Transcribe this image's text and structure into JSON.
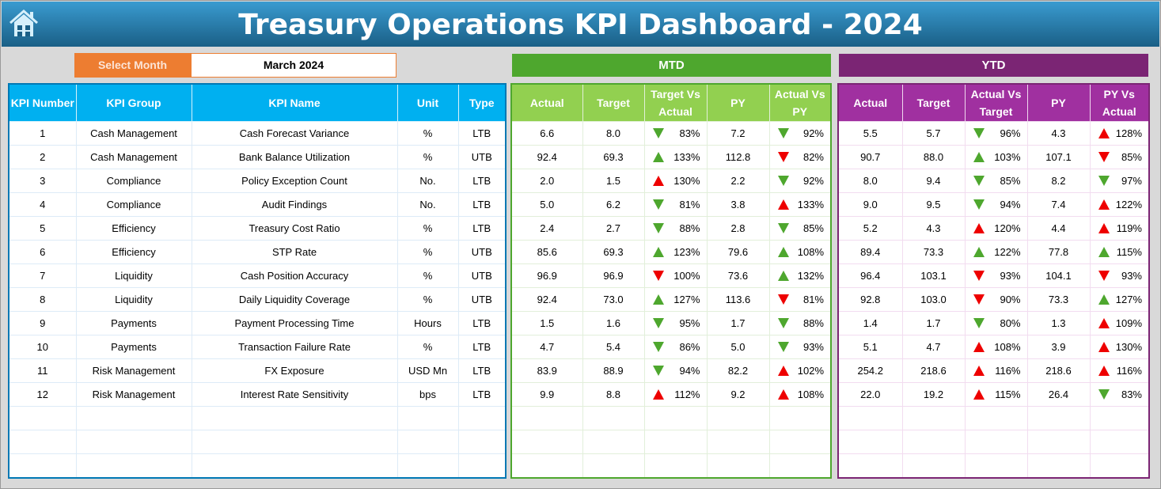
{
  "header": {
    "title": "Treasury Operations KPI Dashboard - 2024"
  },
  "filter": {
    "label": "Select Month",
    "value": "March 2024"
  },
  "sections": {
    "mtd": "MTD",
    "ytd": "YTD"
  },
  "colors": {
    "up_favorable": "#4ea72e",
    "unfavorable": "#e00000",
    "mtd": "#4ea72e",
    "ytd": "#7b2574",
    "info": "#00b0f0"
  },
  "info_headers": [
    "KPI Number",
    "KPI Group",
    "KPI Name",
    "Unit",
    "Type"
  ],
  "mtd_headers": [
    "Actual",
    "Target",
    "Target Vs Actual",
    "PY",
    "Actual Vs PY"
  ],
  "ytd_headers": [
    "Actual",
    "Target",
    "Actual Vs Target",
    "PY",
    "PY Vs Actual"
  ],
  "rows": [
    {
      "info": [
        "1",
        "Cash Management",
        "Cash Forecast Variance",
        "%",
        "LTB"
      ],
      "mtd": [
        "6.6",
        "8.0",
        [
          "down",
          "green",
          "83%"
        ],
        "7.2",
        [
          "down",
          "green",
          "92%"
        ]
      ],
      "ytd": [
        "5.5",
        "5.7",
        [
          "down",
          "green",
          "96%"
        ],
        "4.3",
        [
          "up",
          "red",
          "128%"
        ]
      ]
    },
    {
      "info": [
        "2",
        "Cash Management",
        "Bank Balance Utilization",
        "%",
        "UTB"
      ],
      "mtd": [
        "92.4",
        "69.3",
        [
          "up",
          "green",
          "133%"
        ],
        "112.8",
        [
          "down",
          "red",
          "82%"
        ]
      ],
      "ytd": [
        "90.7",
        "88.0",
        [
          "up",
          "green",
          "103%"
        ],
        "107.1",
        [
          "down",
          "red",
          "85%"
        ]
      ]
    },
    {
      "info": [
        "3",
        "Compliance",
        "Policy Exception Count",
        "No.",
        "LTB"
      ],
      "mtd": [
        "2.0",
        "1.5",
        [
          "up",
          "red",
          "130%"
        ],
        "2.2",
        [
          "down",
          "green",
          "92%"
        ]
      ],
      "ytd": [
        "8.0",
        "9.4",
        [
          "down",
          "green",
          "85%"
        ],
        "8.2",
        [
          "down",
          "green",
          "97%"
        ]
      ]
    },
    {
      "info": [
        "4",
        "Compliance",
        "Audit Findings",
        "No.",
        "LTB"
      ],
      "mtd": [
        "5.0",
        "6.2",
        [
          "down",
          "green",
          "81%"
        ],
        "3.8",
        [
          "up",
          "red",
          "133%"
        ]
      ],
      "ytd": [
        "9.0",
        "9.5",
        [
          "down",
          "green",
          "94%"
        ],
        "7.4",
        [
          "up",
          "red",
          "122%"
        ]
      ]
    },
    {
      "info": [
        "5",
        "Efficiency",
        "Treasury Cost Ratio",
        "%",
        "LTB"
      ],
      "mtd": [
        "2.4",
        "2.7",
        [
          "down",
          "green",
          "88%"
        ],
        "2.8",
        [
          "down",
          "green",
          "85%"
        ]
      ],
      "ytd": [
        "5.2",
        "4.3",
        [
          "up",
          "red",
          "120%"
        ],
        "4.4",
        [
          "up",
          "red",
          "119%"
        ]
      ]
    },
    {
      "info": [
        "6",
        "Efficiency",
        "STP Rate",
        "%",
        "UTB"
      ],
      "mtd": [
        "85.6",
        "69.3",
        [
          "up",
          "green",
          "123%"
        ],
        "79.6",
        [
          "up",
          "green",
          "108%"
        ]
      ],
      "ytd": [
        "89.4",
        "73.3",
        [
          "up",
          "green",
          "122%"
        ],
        "77.8",
        [
          "up",
          "green",
          "115%"
        ]
      ]
    },
    {
      "info": [
        "7",
        "Liquidity",
        "Cash Position Accuracy",
        "%",
        "UTB"
      ],
      "mtd": [
        "96.9",
        "96.9",
        [
          "down",
          "red",
          "100%"
        ],
        "73.6",
        [
          "up",
          "green",
          "132%"
        ]
      ],
      "ytd": [
        "96.4",
        "103.1",
        [
          "down",
          "red",
          "93%"
        ],
        "104.1",
        [
          "down",
          "red",
          "93%"
        ]
      ]
    },
    {
      "info": [
        "8",
        "Liquidity",
        "Daily Liquidity Coverage",
        "%",
        "UTB"
      ],
      "mtd": [
        "92.4",
        "73.0",
        [
          "up",
          "green",
          "127%"
        ],
        "113.6",
        [
          "down",
          "red",
          "81%"
        ]
      ],
      "ytd": [
        "92.8",
        "103.0",
        [
          "down",
          "red",
          "90%"
        ],
        "73.3",
        [
          "up",
          "green",
          "127%"
        ]
      ]
    },
    {
      "info": [
        "9",
        "Payments",
        "Payment Processing Time",
        "Hours",
        "LTB"
      ],
      "mtd": [
        "1.5",
        "1.6",
        [
          "down",
          "green",
          "95%"
        ],
        "1.7",
        [
          "down",
          "green",
          "88%"
        ]
      ],
      "ytd": [
        "1.4",
        "1.7",
        [
          "down",
          "green",
          "80%"
        ],
        "1.3",
        [
          "up",
          "red",
          "109%"
        ]
      ]
    },
    {
      "info": [
        "10",
        "Payments",
        "Transaction Failure Rate",
        "%",
        "LTB"
      ],
      "mtd": [
        "4.7",
        "5.4",
        [
          "down",
          "green",
          "86%"
        ],
        "5.0",
        [
          "down",
          "green",
          "93%"
        ]
      ],
      "ytd": [
        "5.1",
        "4.7",
        [
          "up",
          "red",
          "108%"
        ],
        "3.9",
        [
          "up",
          "red",
          "130%"
        ]
      ]
    },
    {
      "info": [
        "11",
        "Risk Management",
        "FX Exposure",
        "USD Mn",
        "LTB"
      ],
      "mtd": [
        "83.9",
        "88.9",
        [
          "down",
          "green",
          "94%"
        ],
        "82.2",
        [
          "up",
          "red",
          "102%"
        ]
      ],
      "ytd": [
        "254.2",
        "218.6",
        [
          "up",
          "red",
          "116%"
        ],
        "218.6",
        [
          "up",
          "red",
          "116%"
        ]
      ]
    },
    {
      "info": [
        "12",
        "Risk Management",
        "Interest Rate Sensitivity",
        "bps",
        "LTB"
      ],
      "mtd": [
        "9.9",
        "8.8",
        [
          "up",
          "red",
          "112%"
        ],
        "9.2",
        [
          "up",
          "red",
          "108%"
        ]
      ],
      "ytd": [
        "22.0",
        "19.2",
        [
          "up",
          "red",
          "115%"
        ],
        "26.4",
        [
          "down",
          "green",
          "83%"
        ]
      ]
    }
  ]
}
